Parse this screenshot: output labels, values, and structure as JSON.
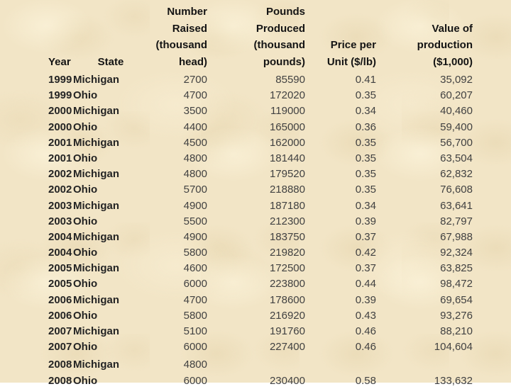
{
  "colors": {
    "background": "#f2e5c6",
    "header_text": "#141414",
    "label_text": "#242424",
    "number_text": "#414141"
  },
  "table": {
    "headers": {
      "year": "Year",
      "state": "State",
      "number_raised": "Number\nRaised\n(thousand\nhead)",
      "pounds_produced": "Pounds\nProduced\n(thousand\npounds)",
      "price_per_unit": "Price per\nUnit ($/lb)",
      "value_of_production": "Value of\nproduction\n($1,000)"
    },
    "rows": [
      {
        "year": "1999",
        "state": "Michigan",
        "number": "2700",
        "pounds": "85590",
        "price": "0.41",
        "value": "35,092"
      },
      {
        "year": "1999",
        "state": "Ohio",
        "number": "4700",
        "pounds": "172020",
        "price": "0.35",
        "value": "60,207"
      },
      {
        "year": "2000",
        "state": "Michigan",
        "number": "3500",
        "pounds": "119000",
        "price": "0.34",
        "value": "40,460"
      },
      {
        "year": "2000",
        "state": "Ohio",
        "number": "4400",
        "pounds": "165000",
        "price": "0.36",
        "value": "59,400"
      },
      {
        "year": "2001",
        "state": "Michigan",
        "number": "4500",
        "pounds": "162000",
        "price": "0.35",
        "value": "56,700"
      },
      {
        "year": "2001",
        "state": "Ohio",
        "number": "4800",
        "pounds": "181440",
        "price": "0.35",
        "value": "63,504"
      },
      {
        "year": "2002",
        "state": "Michigan",
        "number": "4800",
        "pounds": "179520",
        "price": "0.35",
        "value": "62,832"
      },
      {
        "year": "2002",
        "state": "Ohio",
        "number": "5700",
        "pounds": "218880",
        "price": "0.35",
        "value": "76,608"
      },
      {
        "year": "2003",
        "state": "Michigan",
        "number": "4900",
        "pounds": "187180",
        "price": "0.34",
        "value": "63,641"
      },
      {
        "year": "2003",
        "state": "Ohio",
        "number": "5500",
        "pounds": "212300",
        "price": "0.39",
        "value": "82,797"
      },
      {
        "year": "2004",
        "state": "Michigan",
        "number": "4900",
        "pounds": "183750",
        "price": "0.37",
        "value": "67,988"
      },
      {
        "year": "2004",
        "state": "Ohio",
        "number": "5800",
        "pounds": "219820",
        "price": "0.42",
        "value": "92,324"
      },
      {
        "year": "2005",
        "state": "Michigan",
        "number": "4600",
        "pounds": "172500",
        "price": "0.37",
        "value": "63,825"
      },
      {
        "year": "2005",
        "state": "Ohio",
        "number": "6000",
        "pounds": "223800",
        "price": "0.44",
        "value": "98,472"
      },
      {
        "year": "2006",
        "state": "Michigan",
        "number": "4700",
        "pounds": "178600",
        "price": "0.39",
        "value": "69,654"
      },
      {
        "year": "2006",
        "state": "Ohio",
        "number": "5800",
        "pounds": "216920",
        "price": "0.43",
        "value": "93,276"
      },
      {
        "year": "2007",
        "state": "Michigan",
        "number": "5100",
        "pounds": "191760",
        "price": "0.46",
        "value": "88,210"
      },
      {
        "year": "2007",
        "state": "Ohio",
        "number": "6000",
        "pounds": "227400",
        "price": "0.46",
        "value": "104,604"
      },
      {
        "year": "2008",
        "state": "Michigan",
        "number": "4800",
        "pounds": "",
        "price": "",
        "value": "",
        "gap_above": true
      },
      {
        "year": "2008",
        "state": "Ohio",
        "number": "6000",
        "pounds": "230400",
        "price": "0.58",
        "value": "133,632"
      }
    ]
  }
}
